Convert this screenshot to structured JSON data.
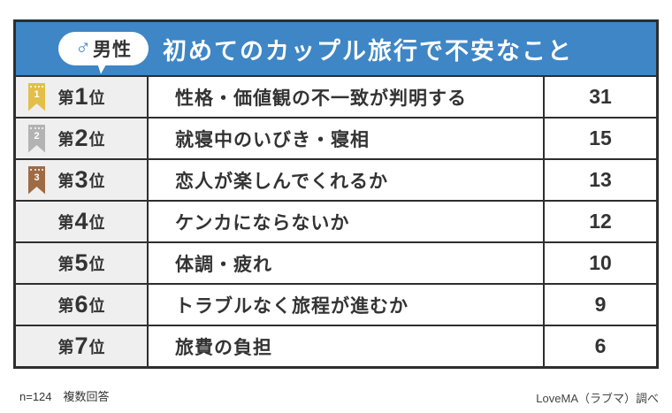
{
  "header": {
    "badge": {
      "gender_symbol": "♂",
      "label": "男性"
    },
    "title": "初めてのカップル旅行で不安なこと"
  },
  "table": {
    "rows": [
      {
        "rank_label": "第",
        "rank_number": "1",
        "rank_unit": "位",
        "medal": "gold",
        "item": "性格・価値観の不一致が判明する",
        "value": "31"
      },
      {
        "rank_label": "第",
        "rank_number": "2",
        "rank_unit": "位",
        "medal": "silver",
        "item": "就寝中のいびき・寝相",
        "value": "15"
      },
      {
        "rank_label": "第",
        "rank_number": "3",
        "rank_unit": "位",
        "medal": "bronze",
        "item": "恋人が楽しんでくれるか",
        "value": "13"
      },
      {
        "rank_label": "第",
        "rank_number": "4",
        "rank_unit": "位",
        "medal": null,
        "item": "ケンカにならないか",
        "value": "12"
      },
      {
        "rank_label": "第",
        "rank_number": "5",
        "rank_unit": "位",
        "medal": null,
        "item": "体調・疲れ",
        "value": "10"
      },
      {
        "rank_label": "第",
        "rank_number": "6",
        "rank_unit": "位",
        "medal": null,
        "item": "トラブルなく旅程が進むか",
        "value": "9"
      },
      {
        "rank_label": "第",
        "rank_number": "7",
        "rank_unit": "位",
        "medal": null,
        "item": "旅費の負担",
        "value": "6"
      }
    ]
  },
  "footer": {
    "left": "n=124　複数回答",
    "right": "LoveMA（ラブマ）調べ"
  },
  "colors": {
    "accent_blue": "#3e86c5",
    "border_dark": "#2e2e2e",
    "rank_cell_bg": "#efefef",
    "medal_gold": "#e3bf4a",
    "medal_silver": "#b3b3b3",
    "medal_bronze": "#9e6b45",
    "text_dark": "#333333"
  },
  "chart_data": {
    "type": "table",
    "title": "初めてのカップル旅行で不安なこと",
    "group_label": "男性",
    "ranks": [
      "第1位",
      "第2位",
      "第3位",
      "第4位",
      "第5位",
      "第6位",
      "第7位"
    ],
    "categories": [
      "性格・価値観の不一致が判明する",
      "就寝中のいびき・寝相",
      "恋人が楽しんでくれるか",
      "ケンカにならないか",
      "体調・疲れ",
      "トラブルなく旅程が進むか",
      "旅費の負担"
    ],
    "values": [
      31,
      15,
      13,
      12,
      10,
      9,
      6
    ],
    "sample_note": "n=124　複数回答",
    "source": "LoveMA（ラブマ）調べ"
  }
}
